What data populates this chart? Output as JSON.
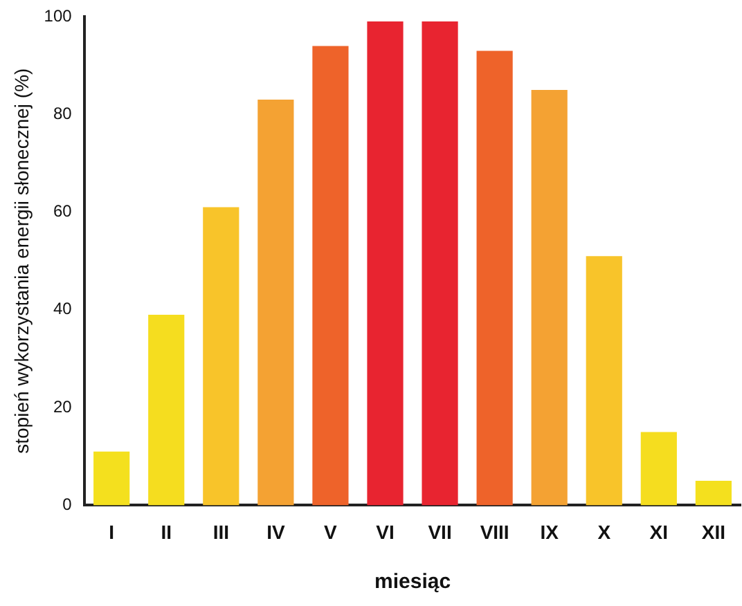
{
  "chart_data": {
    "type": "bar",
    "xlabel": "miesiąc",
    "ylabel": "stopień wykorzystania energii słonecznej (%)",
    "categories": [
      "I",
      "II",
      "III",
      "IV",
      "V",
      "VI",
      "VII",
      "VIII",
      "IX",
      "X",
      "XI",
      "XII"
    ],
    "values": [
      11,
      39,
      61,
      83,
      94,
      99,
      99,
      93,
      85,
      51,
      15,
      5
    ],
    "colors": [
      "#f4e01e",
      "#f5dd1f",
      "#f8c42a",
      "#f4a233",
      "#ee632a",
      "#e82430",
      "#e82430",
      "#ee632a",
      "#f4a233",
      "#f8c42a",
      "#f5dd1f",
      "#f4e01e"
    ],
    "ylim": [
      0,
      100
    ],
    "yticks": [
      0,
      20,
      40,
      60,
      80,
      100
    ],
    "grid": false,
    "legend": false
  }
}
